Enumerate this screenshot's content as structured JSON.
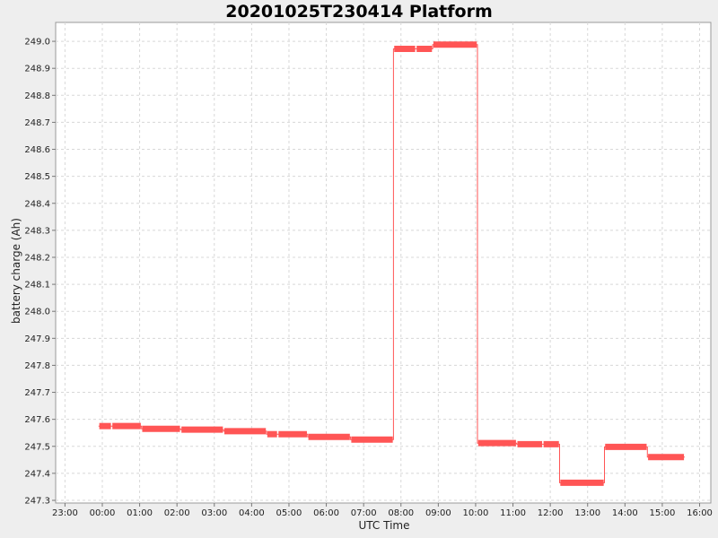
{
  "chart_data": {
    "type": "line",
    "title": "20201025T230414 Platform",
    "xlabel": "UTC Time",
    "ylabel": "battery charge (Ah)",
    "x_unit": "hours since 00:00 UTC",
    "xlim": [
      -1.25,
      16.3
    ],
    "ylim": [
      247.29,
      249.07
    ],
    "x_ticks": [
      {
        "x": -1,
        "label": "23:00"
      },
      {
        "x": 0,
        "label": "00:00"
      },
      {
        "x": 1,
        "label": "01:00"
      },
      {
        "x": 2,
        "label": "02:00"
      },
      {
        "x": 3,
        "label": "03:00"
      },
      {
        "x": 4,
        "label": "04:00"
      },
      {
        "x": 5,
        "label": "05:00"
      },
      {
        "x": 6,
        "label": "06:00"
      },
      {
        "x": 7,
        "label": "07:00"
      },
      {
        "x": 8,
        "label": "08:00"
      },
      {
        "x": 9,
        "label": "09:00"
      },
      {
        "x": 10,
        "label": "10:00"
      },
      {
        "x": 11,
        "label": "11:00"
      },
      {
        "x": 12,
        "label": "12:00"
      },
      {
        "x": 13,
        "label": "13:00"
      },
      {
        "x": 14,
        "label": "14:00"
      },
      {
        "x": 15,
        "label": "15:00"
      },
      {
        "x": 16,
        "label": "16:00"
      }
    ],
    "y_ticks": [
      {
        "y": 247.3,
        "label": "247.3"
      },
      {
        "y": 247.4,
        "label": "247.4"
      },
      {
        "y": 247.5,
        "label": "247.5"
      },
      {
        "y": 247.6,
        "label": "247.6"
      },
      {
        "y": 247.7,
        "label": "247.7"
      },
      {
        "y": 247.8,
        "label": "247.8"
      },
      {
        "y": 247.9,
        "label": "247.9"
      },
      {
        "y": 248.0,
        "label": "248.0"
      },
      {
        "y": 248.1,
        "label": "248.1"
      },
      {
        "y": 248.2,
        "label": "248.2"
      },
      {
        "y": 248.3,
        "label": "248.3"
      },
      {
        "y": 248.4,
        "label": "248.4"
      },
      {
        "y": 248.5,
        "label": "248.5"
      },
      {
        "y": 248.6,
        "label": "248.6"
      },
      {
        "y": 248.7,
        "label": "248.7"
      },
      {
        "y": 248.8,
        "label": "248.8"
      },
      {
        "y": 248.9,
        "label": "248.9"
      },
      {
        "y": 249.0,
        "label": "249.0"
      }
    ],
    "grid": true,
    "series_color": "#ff5555",
    "series": [
      {
        "segments": [
          {
            "x_start": -0.1,
            "x_end": 0.25,
            "y": 247.575
          },
          {
            "x_start": 0.25,
            "x_end": 1.05,
            "y": 247.575
          },
          {
            "x_start": 1.05,
            "x_end": 2.1,
            "y": 247.565
          },
          {
            "x_start": 2.1,
            "x_end": 3.25,
            "y": 247.562
          },
          {
            "x_start": 3.25,
            "x_end": 4.4,
            "y": 247.556
          },
          {
            "x_start": 4.4,
            "x_end": 4.7,
            "y": 247.545
          },
          {
            "x_start": 4.7,
            "x_end": 5.5,
            "y": 247.545
          },
          {
            "x_start": 5.5,
            "x_end": 6.65,
            "y": 247.535
          },
          {
            "x_start": 6.65,
            "x_end": 7.8,
            "y": 247.525
          },
          {
            "x_start": 7.8,
            "x_end": 8.4,
            "y": 248.972
          },
          {
            "x_start": 8.4,
            "x_end": 8.85,
            "y": 248.972
          },
          {
            "x_start": 8.85,
            "x_end": 10.05,
            "y": 248.988
          },
          {
            "x_start": 10.05,
            "x_end": 11.1,
            "y": 247.512
          },
          {
            "x_start": 11.1,
            "x_end": 11.8,
            "y": 247.508
          },
          {
            "x_start": 11.8,
            "x_end": 12.25,
            "y": 247.508
          },
          {
            "x_start": 12.25,
            "x_end": 13.45,
            "y": 247.365
          },
          {
            "x_start": 13.45,
            "x_end": 14.6,
            "y": 247.498
          },
          {
            "x_start": 14.6,
            "x_end": 15.6,
            "y": 247.46
          }
        ]
      }
    ]
  }
}
